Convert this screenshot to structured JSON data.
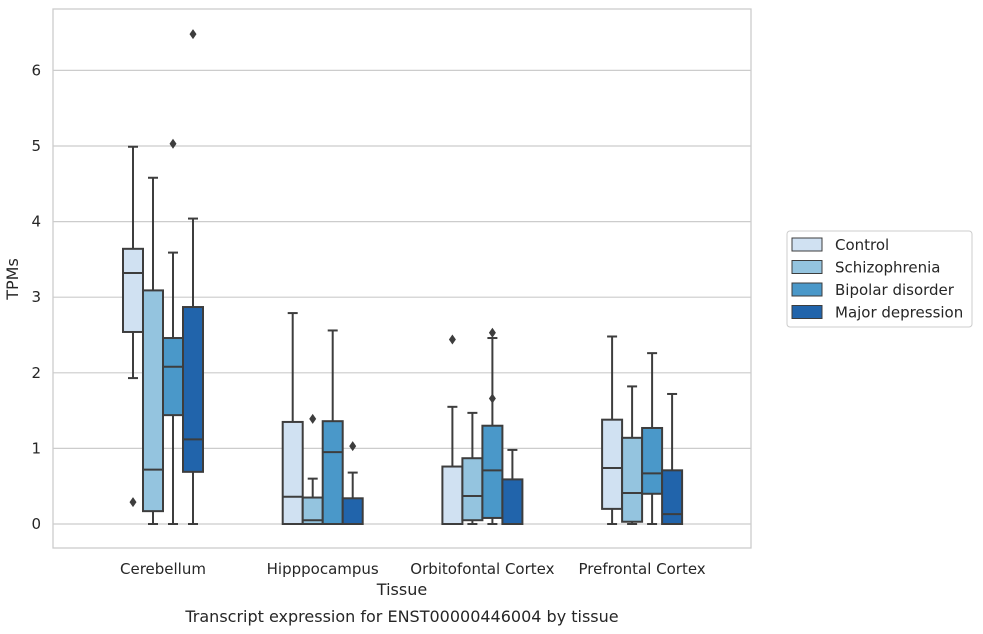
{
  "chart_data": {
    "type": "boxplot",
    "title": "Transcript expression for ENST00000446004 by tissue",
    "xlabel": "Tissue",
    "ylabel": "TPMs",
    "ylim": [
      -0.32,
      6.85
    ],
    "yticks": [
      "0",
      "1",
      "2",
      "3",
      "4",
      "5",
      "6"
    ],
    "grid": true,
    "legend_position": "right",
    "categories": [
      "Cerebellum",
      "Hipppocampus",
      "Orbitofontal Cortex",
      "Prefrontal Cortex"
    ],
    "series": [
      {
        "name": "Control",
        "color": "#d0e1f2",
        "boxes": [
          {
            "whislo": 1.93,
            "q1": 2.54,
            "med": 3.32,
            "q3": 3.64,
            "whishi": 4.99,
            "fliers": [
              0.29
            ]
          },
          {
            "whislo": 0.0,
            "q1": 0.0,
            "med": 0.36,
            "q3": 1.35,
            "whishi": 2.79,
            "fliers": []
          },
          {
            "whislo": 0.0,
            "q1": 0.0,
            "med": 0.0,
            "q3": 0.76,
            "whishi": 1.55,
            "fliers": [
              2.44
            ]
          },
          {
            "whislo": 0.0,
            "q1": 0.2,
            "med": 0.74,
            "q3": 1.38,
            "whishi": 2.48,
            "fliers": []
          }
        ]
      },
      {
        "name": "Schizophrenia",
        "color": "#94c4df",
        "boxes": [
          {
            "whislo": 0.0,
            "q1": 0.17,
            "med": 0.72,
            "q3": 3.09,
            "whishi": 4.58,
            "fliers": []
          },
          {
            "whislo": 0.0,
            "q1": 0.0,
            "med": 0.05,
            "q3": 0.35,
            "whishi": 0.6,
            "fliers": [
              1.39
            ]
          },
          {
            "whislo": 0.0,
            "q1": 0.05,
            "med": 0.37,
            "q3": 0.87,
            "whishi": 1.47,
            "fliers": []
          },
          {
            "whislo": 0.0,
            "q1": 0.03,
            "med": 0.41,
            "q3": 1.14,
            "whishi": 1.82,
            "fliers": []
          }
        ]
      },
      {
        "name": "Bipolar disorder",
        "color": "#4a98c9",
        "boxes": [
          {
            "whislo": 0.0,
            "q1": 1.44,
            "med": 2.08,
            "q3": 2.46,
            "whishi": 3.59,
            "fliers": [
              5.03
            ]
          },
          {
            "whislo": 0.0,
            "q1": 0.0,
            "med": 0.95,
            "q3": 1.36,
            "whishi": 2.56,
            "fliers": []
          },
          {
            "whislo": 0.0,
            "q1": 0.08,
            "med": 0.71,
            "q3": 1.3,
            "whishi": 2.46,
            "fliers": [
              2.53,
              1.66
            ]
          },
          {
            "whislo": 0.0,
            "q1": 0.4,
            "med": 0.67,
            "q3": 1.27,
            "whishi": 2.26,
            "fliers": []
          }
        ]
      },
      {
        "name": "Major depression",
        "color": "#2164ab",
        "boxes": [
          {
            "whislo": 0.0,
            "q1": 0.69,
            "med": 1.12,
            "q3": 2.87,
            "whishi": 4.04,
            "fliers": [
              6.48
            ]
          },
          {
            "whislo": 0.0,
            "q1": 0.0,
            "med": 0.0,
            "q3": 0.34,
            "whishi": 0.68,
            "fliers": [
              1.03
            ]
          },
          {
            "whislo": 0.0,
            "q1": 0.0,
            "med": 0.0,
            "q3": 0.59,
            "whishi": 0.98,
            "fliers": []
          },
          {
            "whislo": 0.0,
            "q1": 0.0,
            "med": 0.13,
            "q3": 0.71,
            "whishi": 1.72,
            "fliers": []
          }
        ]
      }
    ]
  }
}
